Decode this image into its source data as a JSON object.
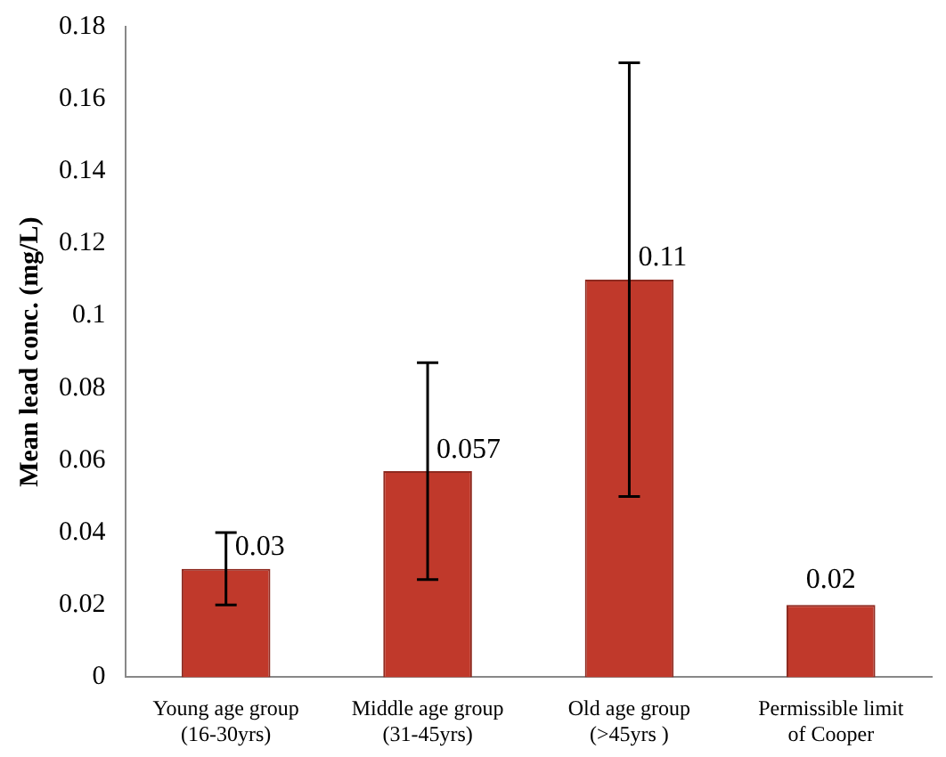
{
  "chart_data": {
    "type": "bar",
    "ylabel": "Mean lead conc. (mg/L)",
    "categories": [
      "Young age group (16-30yrs)",
      "Middle age group (31-45yrs)",
      "Old age group (>45yrs )",
      "Permissible limit of Cooper"
    ],
    "values": [
      0.03,
      0.057,
      0.11,
      0.02
    ],
    "errors": [
      0.01,
      0.03,
      0.06,
      null
    ],
    "color": "#c0392b",
    "ylim": [
      0,
      0.18
    ],
    "yticks": [
      0,
      0.02,
      0.04,
      0.06,
      0.08,
      0.1,
      0.12,
      0.14,
      0.16,
      0.18
    ],
    "data_labels": true,
    "grid": false,
    "legend": false
  }
}
